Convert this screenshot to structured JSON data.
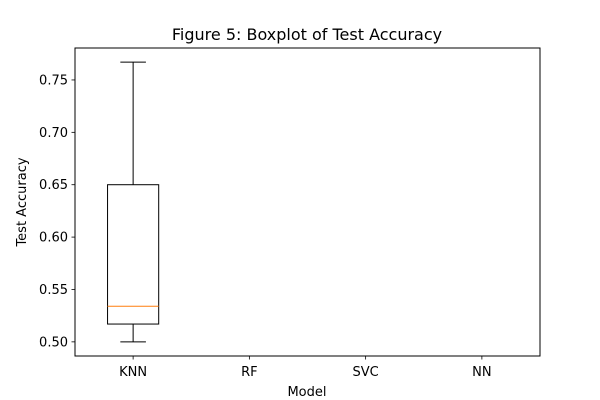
{
  "chart_data": {
    "type": "boxplot",
    "title": "Figure 5: Boxplot of Test Accuracy",
    "xlabel": "Model",
    "ylabel": "Test Accuracy",
    "categories": [
      "KNN",
      "RF",
      "SVC",
      "NN"
    ],
    "ylim": [
      0.4865,
      0.7805
    ],
    "yticks": [
      0.5,
      0.55,
      0.6,
      0.65,
      0.7,
      0.75
    ],
    "ytick_labels": [
      "0.50",
      "0.55",
      "0.60",
      "0.65",
      "0.70",
      "0.75"
    ],
    "boxes": [
      {
        "category": "KNN",
        "whisker_low": 0.5,
        "q1": 0.517,
        "median": 0.534,
        "q3": 0.65,
        "whisker_high": 0.767
      }
    ],
    "grid": false,
    "colors": {
      "box": "#000000",
      "median": "#ff7f0e"
    }
  }
}
